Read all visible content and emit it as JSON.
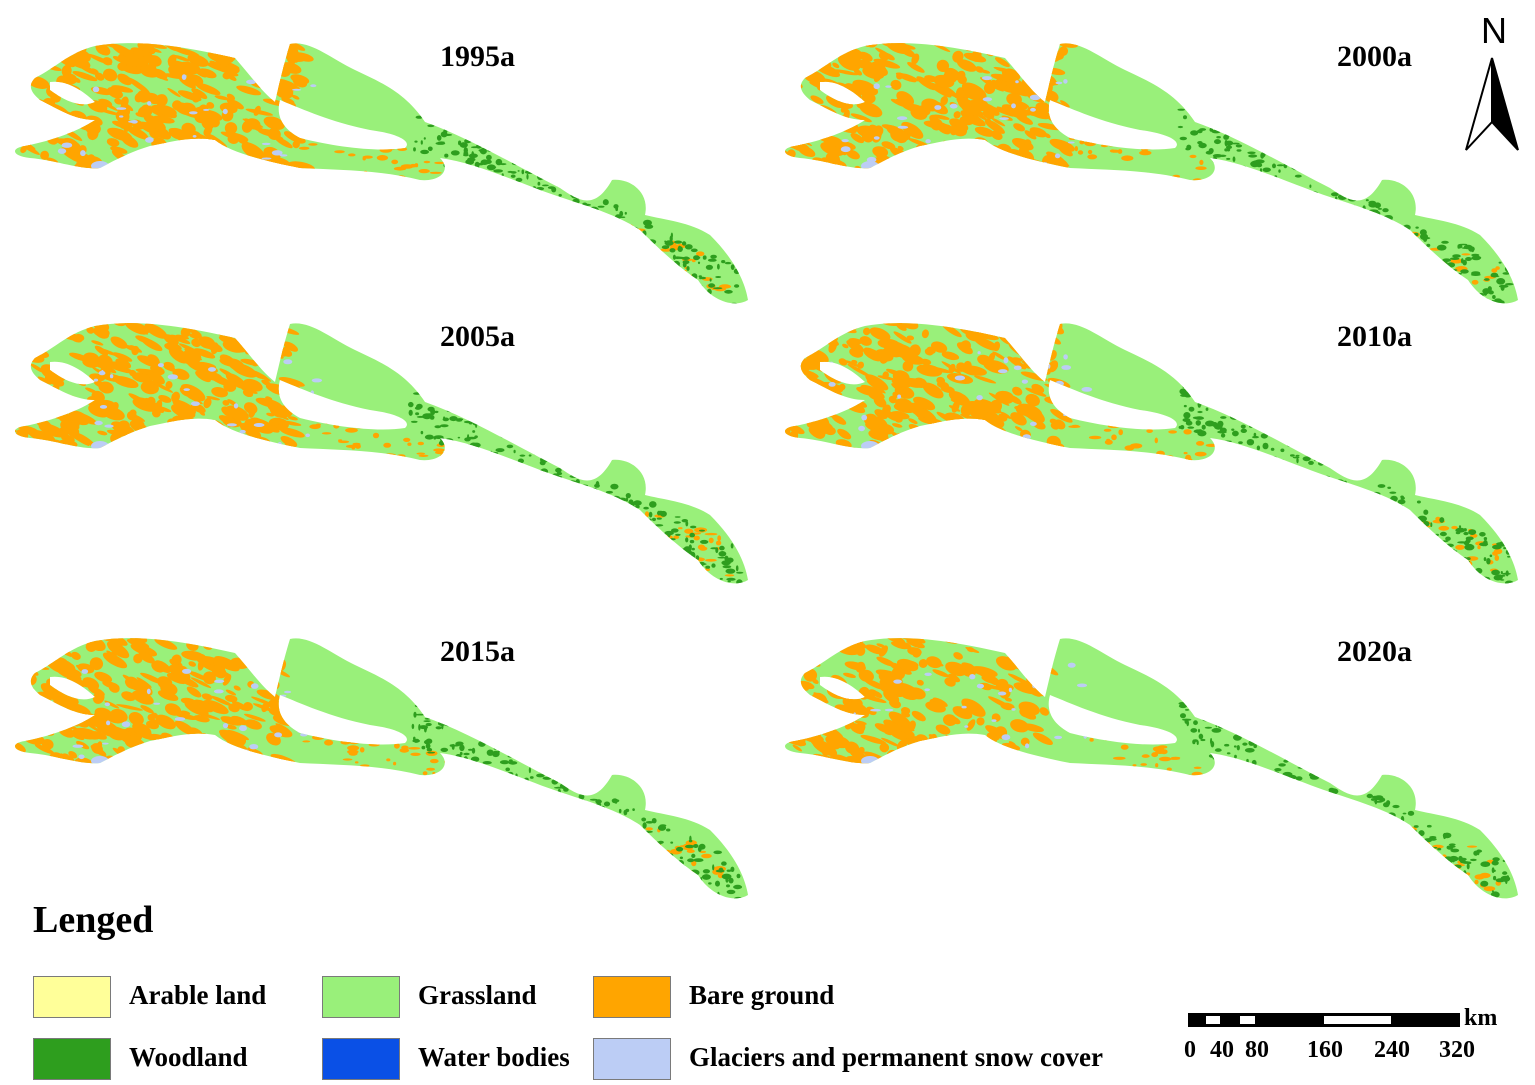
{
  "figure": {
    "panels": [
      {
        "year_label": "1995a"
      },
      {
        "year_label": "2000a"
      },
      {
        "year_label": "2005a"
      },
      {
        "year_label": "2010a"
      },
      {
        "year_label": "2015a"
      },
      {
        "year_label": "2020a"
      }
    ]
  },
  "north_arrow": {
    "label": "N"
  },
  "legend": {
    "title": "Lenged",
    "items": [
      {
        "label": "Arable land",
        "color": "#ffff99"
      },
      {
        "label": "Grassland",
        "color": "#99f07a"
      },
      {
        "label": "Bare ground",
        "color": "#ffa500"
      },
      {
        "label": "Woodland",
        "color": "#2e9e1e"
      },
      {
        "label": "Water bodies",
        "color": "#0a50e6"
      },
      {
        "label": "Glaciers and permanent snow cover",
        "color": "#bccdf5"
      }
    ]
  },
  "scale_bar": {
    "unit": "km",
    "ticks": [
      "0",
      "40",
      "80",
      "160",
      "240",
      "320"
    ]
  }
}
